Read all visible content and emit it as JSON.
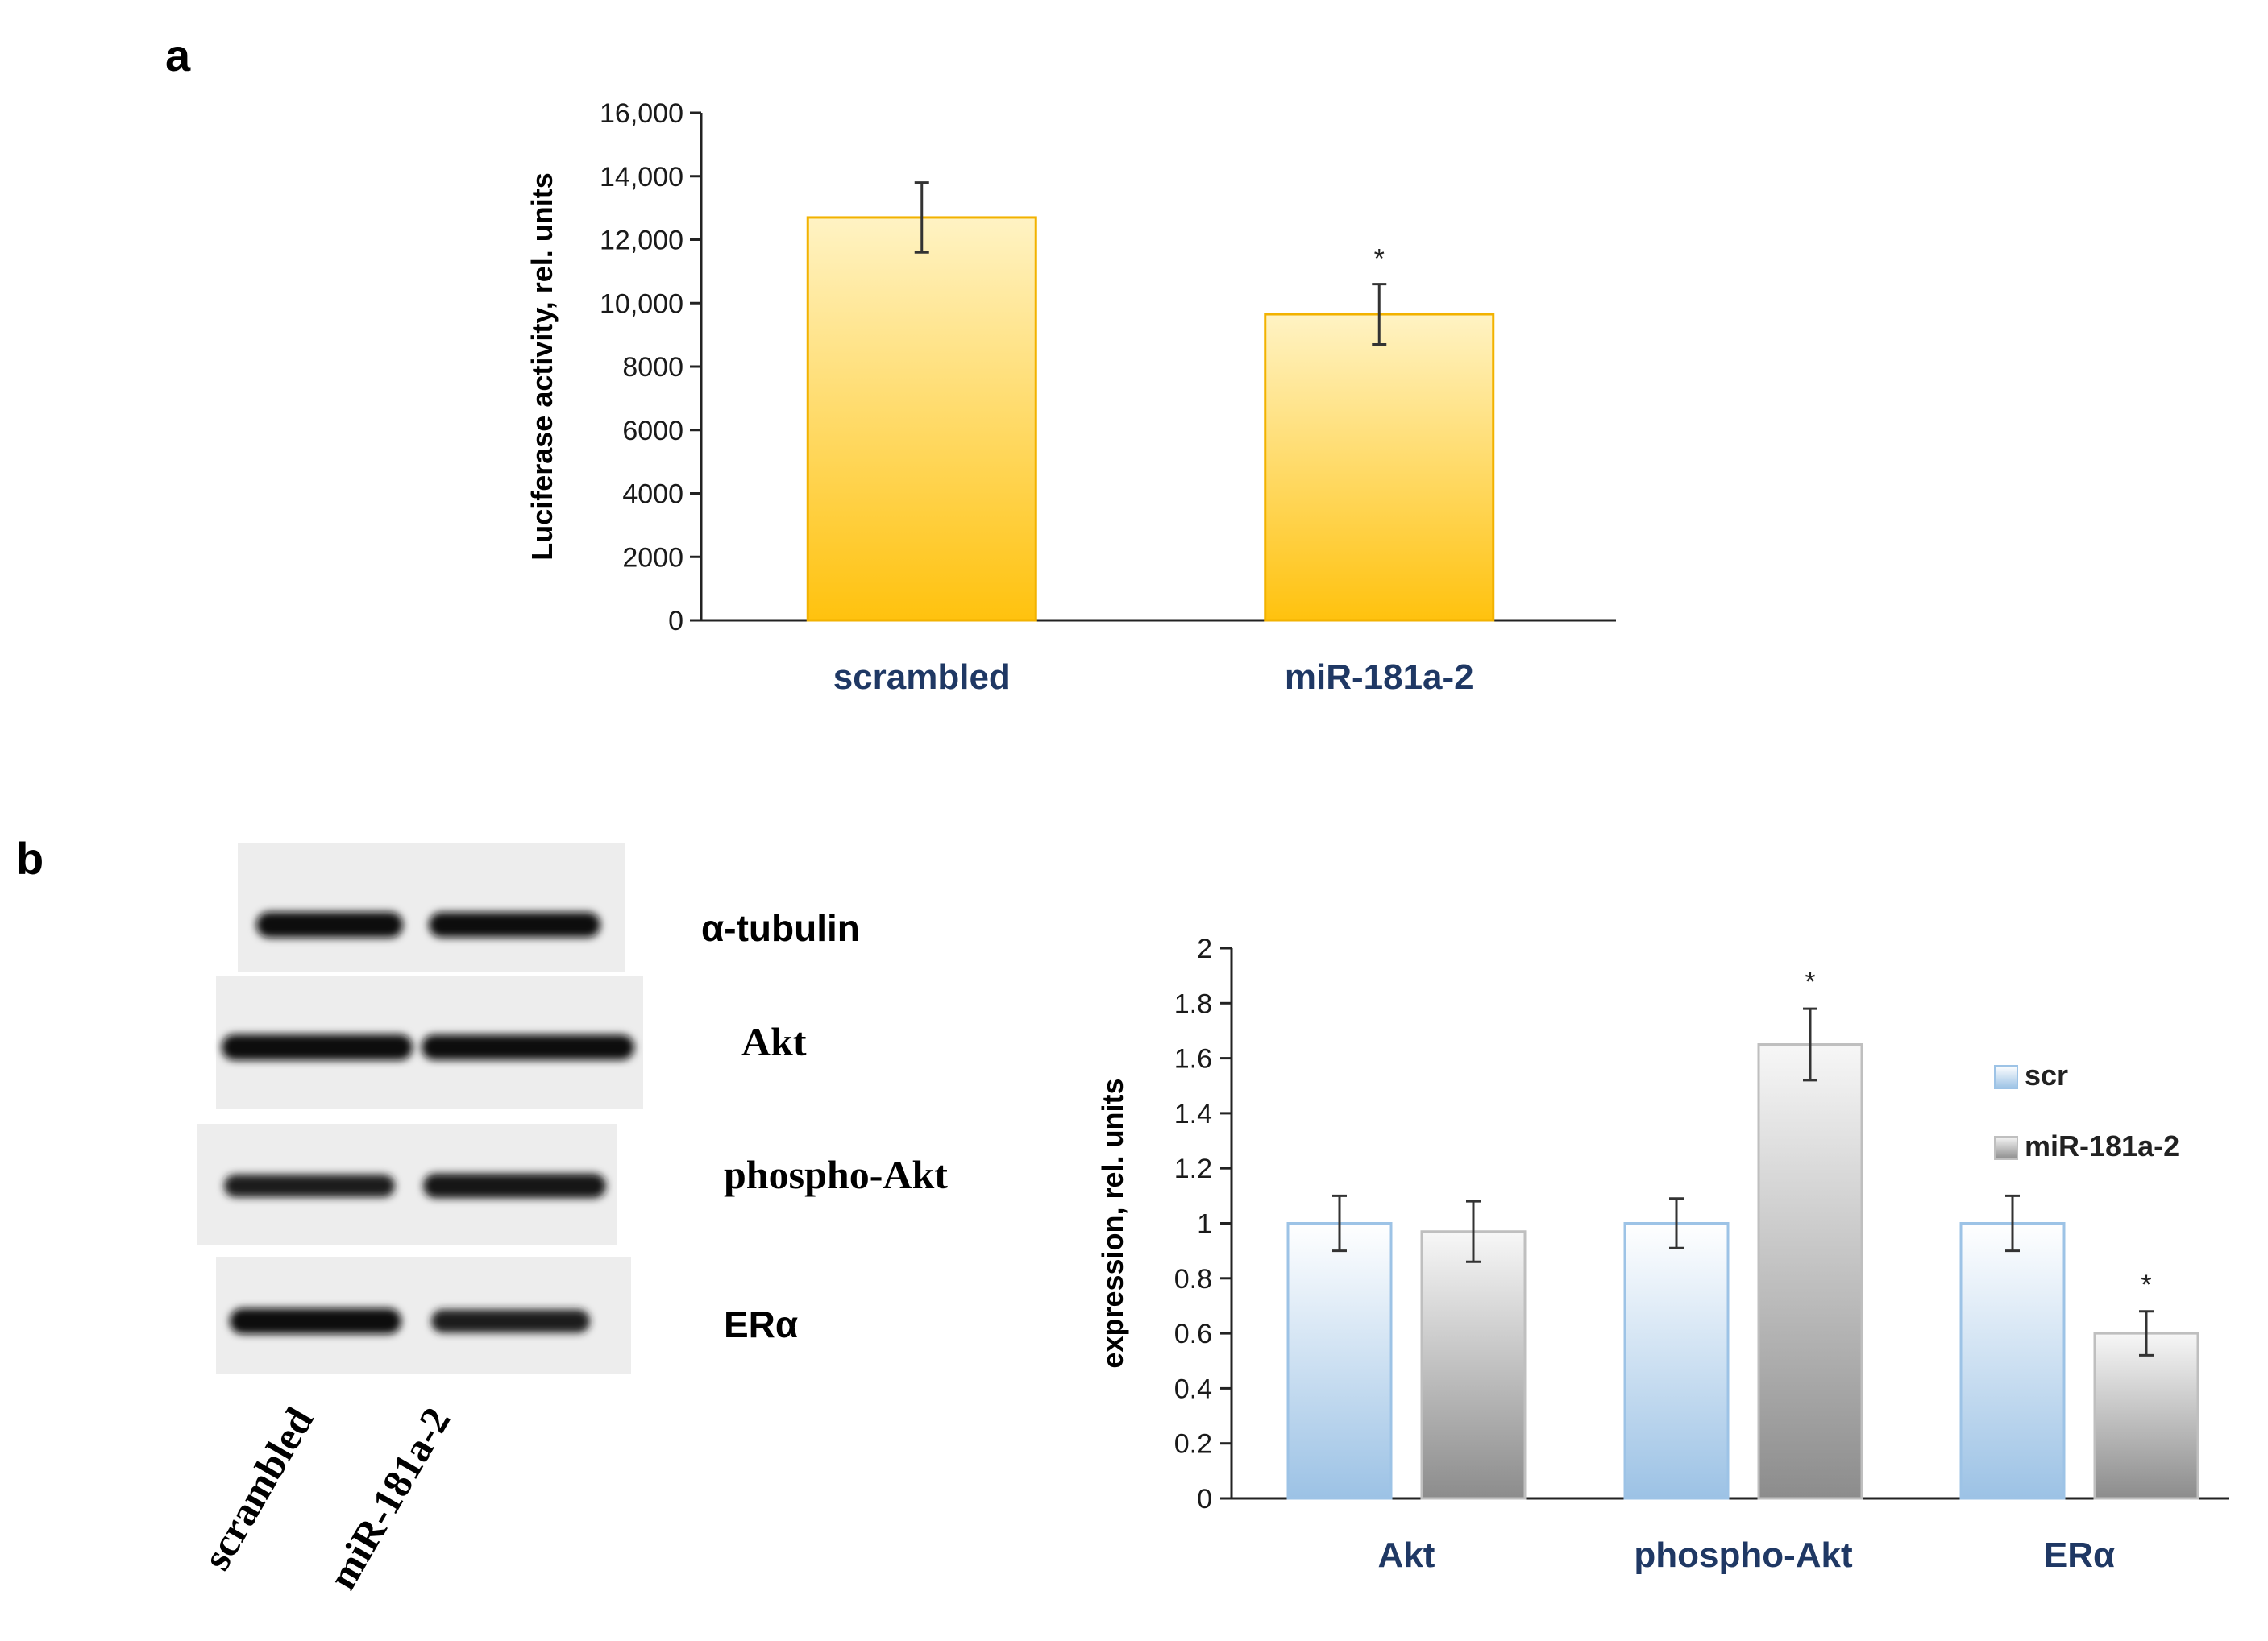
{
  "panel_a_letter": "a",
  "panel_b_letter": "b",
  "blot": {
    "bands": [
      {
        "label": "α-tubulin",
        "intensity": [
          1.0,
          0.95
        ]
      },
      {
        "label": "Akt",
        "intensity": [
          1.0,
          0.95
        ]
      },
      {
        "label": "phospho-Akt",
        "intensity": [
          0.75,
          0.9
        ]
      },
      {
        "label": "ERα",
        "intensity": [
          1.0,
          0.8
        ]
      }
    ],
    "lanes": [
      "scrambled",
      "miR-181a-2"
    ]
  },
  "colors": {
    "panel_a_bar_top": "#fff3c4",
    "panel_a_bar_bottom": "#ffc20e",
    "panel_a_bar_stroke": "#f2b200",
    "scr_top": "#ffffff",
    "scr_bottom": "#9cc2e5",
    "scr_stroke": "#9dc3e6",
    "mir_top": "#f7f7f7",
    "mir_bottom": "#8c8c8c",
    "mir_stroke": "#bfbfbf",
    "category_text": "#1f3864"
  },
  "chart_data": [
    {
      "type": "bar",
      "title": "",
      "xlabel": "",
      "ylabel": "Luciferase activity, rel. units",
      "categories": [
        "scrambled",
        "miR-181a-2"
      ],
      "values": [
        12700,
        9650
      ],
      "errors": [
        1100,
        950
      ],
      "significance": [
        "",
        "*"
      ],
      "ylim": [
        0,
        16000
      ],
      "yticks": [
        0,
        2000,
        4000,
        6000,
        8000,
        10000,
        12000,
        14000,
        16000
      ],
      "ytick_labels": [
        "0",
        "2000",
        "4000",
        "6000",
        "8000",
        "10,000",
        "12,000",
        "14,000",
        "16,000"
      ],
      "grid": false
    },
    {
      "type": "bar",
      "title": "",
      "xlabel": "",
      "ylabel": "expression, rel. units",
      "categories": [
        "Akt",
        "phospho-Akt",
        "ERα"
      ],
      "series": [
        {
          "name": "scr",
          "values": [
            1.0,
            1.0,
            1.0
          ],
          "errors": [
            0.1,
            0.09,
            0.1
          ],
          "significance": [
            "",
            "",
            ""
          ]
        },
        {
          "name": "miR-181a-2",
          "values": [
            0.97,
            1.65,
            0.6
          ],
          "errors": [
            0.11,
            0.13,
            0.08
          ],
          "significance": [
            "",
            "*",
            "*"
          ]
        }
      ],
      "ylim": [
        0,
        2
      ],
      "yticks": [
        0,
        0.2,
        0.4,
        0.6,
        0.8,
        1.0,
        1.2,
        1.4,
        1.6,
        1.8,
        2.0
      ],
      "ytick_labels": [
        "0",
        "0.2",
        "0.4",
        "0.6",
        "0.8",
        "1",
        "1.2",
        "1.4",
        "1.6",
        "1.8",
        "2"
      ],
      "legend": "right",
      "grid": false
    }
  ]
}
